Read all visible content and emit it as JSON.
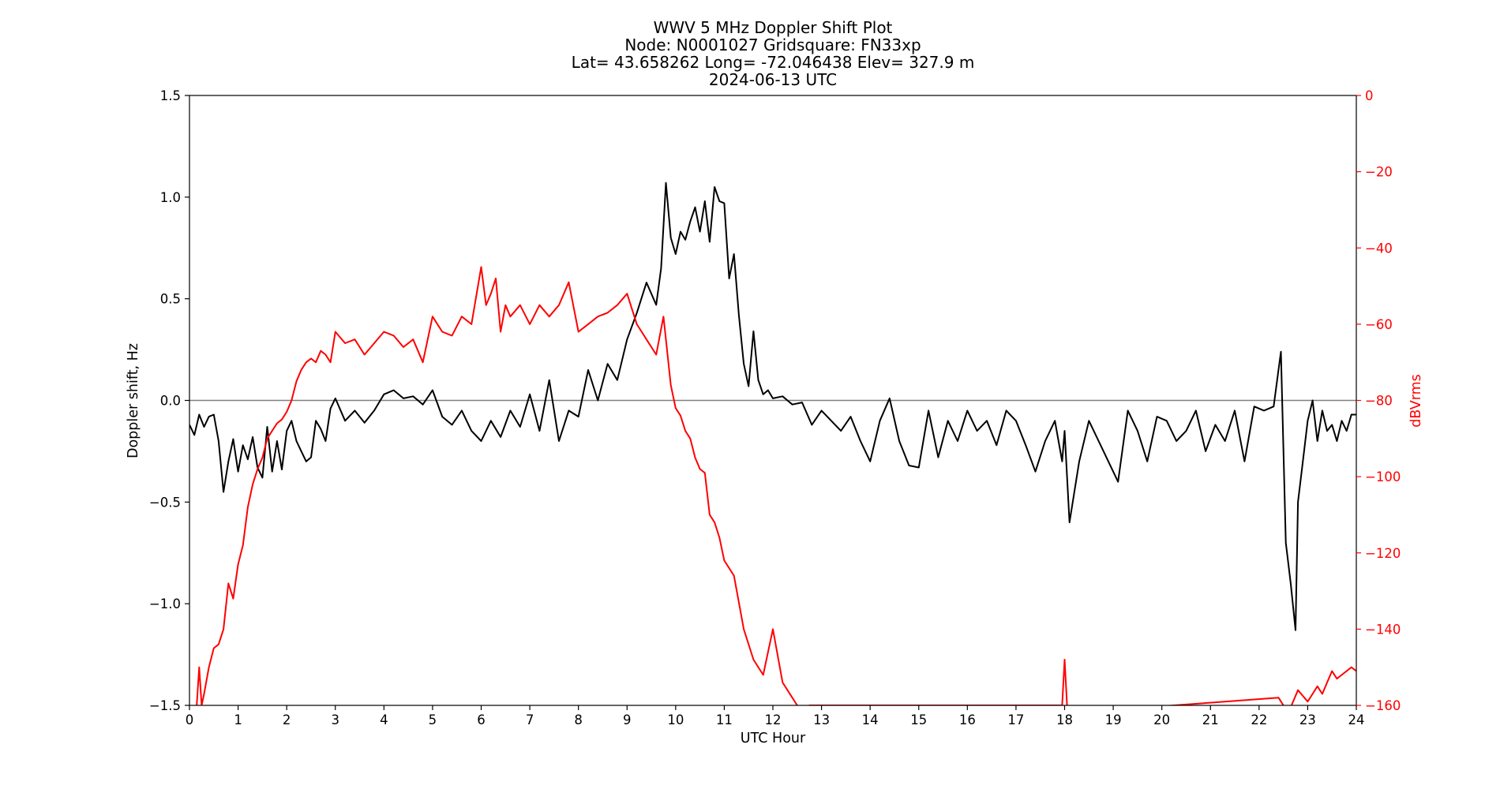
{
  "colors": {
    "doppler": "#000000",
    "power": "#ff0000",
    "zero_line": "#808080",
    "background": "#ffffff"
  },
  "chart_data": {
    "type": "line",
    "title_lines": [
      "WWV 5 MHz Doppler Shift Plot",
      "Node:  N0001027     Gridsquare:  FN33xp",
      "Lat=   43.658262    Long= -72.046438    Elev= 327.9 m",
      "2024-06-13  UTC"
    ],
    "xlabel": "UTC Hour",
    "ylabel": "Doppler shift, Hz",
    "y2label": "dBVrms",
    "xlim": [
      0,
      24
    ],
    "ylim": [
      -1.5,
      1.5
    ],
    "y2lim": [
      -160,
      0
    ],
    "x_ticks": [
      0,
      1,
      2,
      3,
      4,
      5,
      6,
      7,
      8,
      9,
      10,
      11,
      12,
      13,
      14,
      15,
      16,
      17,
      18,
      19,
      20,
      21,
      22,
      23,
      24
    ],
    "y_ticks": [
      "-1.5",
      "-1.0",
      "-0.5",
      "0.0",
      "0.5",
      "1.0",
      "1.5"
    ],
    "y2_ticks": [
      "-160",
      "-140",
      "-120",
      "-100",
      "-80",
      "-60",
      "-40",
      "-20",
      "0"
    ],
    "grid": false,
    "reference_line_y": 0,
    "series": [
      {
        "name": "",
        "axis": "left",
        "color": "#000000",
        "x": [
          0,
          0.1,
          0.2,
          0.3,
          0.4,
          0.5,
          0.6,
          0.7,
          0.8,
          0.9,
          1.0,
          1.1,
          1.2,
          1.3,
          1.4,
          1.5,
          1.6,
          1.7,
          1.8,
          1.9,
          2.0,
          2.1,
          2.2,
          2.3,
          2.4,
          2.5,
          2.6,
          2.7,
          2.8,
          2.9,
          3.0,
          3.2,
          3.4,
          3.6,
          3.8,
          4.0,
          4.2,
          4.4,
          4.6,
          4.8,
          5.0,
          5.2,
          5.4,
          5.6,
          5.8,
          6.0,
          6.2,
          6.4,
          6.6,
          6.8,
          7.0,
          7.2,
          7.4,
          7.6,
          7.8,
          8.0,
          8.2,
          8.4,
          8.6,
          8.8,
          9.0,
          9.2,
          9.4,
          9.6,
          9.7,
          9.8,
          9.9,
          10.0,
          10.1,
          10.2,
          10.3,
          10.4,
          10.5,
          10.6,
          10.7,
          10.8,
          10.9,
          11.0,
          11.1,
          11.2,
          11.3,
          11.4,
          11.5,
          11.6,
          11.7,
          11.8,
          11.9,
          12.0,
          12.2,
          12.4,
          12.6,
          12.8,
          13.0,
          13.2,
          13.4,
          13.6,
          13.8,
          14.0,
          14.2,
          14.4,
          14.6,
          14.8,
          15.0,
          15.2,
          15.4,
          15.6,
          15.8,
          16.0,
          16.2,
          16.4,
          16.6,
          16.8,
          17.0,
          17.2,
          17.4,
          17.6,
          17.8,
          17.95,
          18.0,
          18.1,
          18.3,
          18.5,
          18.7,
          18.9,
          19.1,
          19.3,
          19.5,
          19.7,
          19.9,
          20.1,
          20.3,
          20.5,
          20.7,
          20.9,
          21.1,
          21.3,
          21.5,
          21.7,
          21.9,
          22.1,
          22.3,
          22.45,
          22.55,
          22.65,
          22.75,
          22.8,
          22.9,
          23.0,
          23.1,
          23.2,
          23.3,
          23.4,
          23.5,
          23.6,
          23.7,
          23.8,
          23.9,
          24.0
        ],
        "values": [
          -0.12,
          -0.17,
          -0.07,
          -0.13,
          -0.08,
          -0.07,
          -0.2,
          -0.45,
          -0.3,
          -0.19,
          -0.35,
          -0.22,
          -0.29,
          -0.18,
          -0.33,
          -0.38,
          -0.13,
          -0.35,
          -0.2,
          -0.34,
          -0.15,
          -0.1,
          -0.2,
          -0.25,
          -0.3,
          -0.28,
          -0.1,
          -0.14,
          -0.2,
          -0.04,
          0.01,
          -0.1,
          -0.05,
          -0.11,
          -0.05,
          0.03,
          0.05,
          0.01,
          0.02,
          -0.02,
          0.05,
          -0.08,
          -0.12,
          -0.05,
          -0.15,
          -0.2,
          -0.1,
          -0.18,
          -0.05,
          -0.13,
          0.03,
          -0.15,
          0.1,
          -0.2,
          -0.05,
          -0.08,
          0.15,
          0.0,
          0.18,
          0.1,
          0.3,
          0.43,
          0.58,
          0.47,
          0.65,
          1.07,
          0.8,
          0.72,
          0.83,
          0.79,
          0.88,
          0.95,
          0.83,
          0.98,
          0.78,
          1.05,
          0.98,
          0.97,
          0.6,
          0.72,
          0.42,
          0.18,
          0.07,
          0.34,
          0.1,
          0.03,
          0.05,
          0.01,
          0.02,
          -0.02,
          -0.01,
          -0.12,
          -0.05,
          -0.1,
          -0.15,
          -0.08,
          -0.2,
          -0.3,
          -0.1,
          0.01,
          -0.2,
          -0.32,
          -0.33,
          -0.05,
          -0.28,
          -0.1,
          -0.2,
          -0.05,
          -0.15,
          -0.1,
          -0.22,
          -0.05,
          -0.1,
          -0.22,
          -0.35,
          -0.2,
          -0.1,
          -0.3,
          -0.15,
          -0.6,
          -0.3,
          -0.1,
          -0.2,
          -0.3,
          -0.4,
          -0.05,
          -0.15,
          -0.3,
          -0.08,
          -0.1,
          -0.2,
          -0.15,
          -0.05,
          -0.25,
          -0.12,
          -0.2,
          -0.05,
          -0.3,
          -0.03,
          -0.05,
          -0.03,
          0.24,
          -0.7,
          -0.9,
          -1.13,
          -0.5,
          -0.3,
          -0.1,
          0.0,
          -0.2,
          -0.05,
          -0.15,
          -0.12,
          -0.2,
          -0.1,
          -0.15,
          -0.07,
          -0.07
        ]
      },
      {
        "name": "",
        "axis": "right",
        "color": "#ff0000",
        "x": [
          0.15,
          0.2,
          0.25,
          0.3,
          0.4,
          0.5,
          0.6,
          0.7,
          0.8,
          0.9,
          1.0,
          1.1,
          1.2,
          1.3,
          1.4,
          1.5,
          1.6,
          1.7,
          1.8,
          1.9,
          2.0,
          2.1,
          2.2,
          2.3,
          2.4,
          2.5,
          2.6,
          2.7,
          2.8,
          2.9,
          3.0,
          3.2,
          3.4,
          3.6,
          3.8,
          4.0,
          4.2,
          4.4,
          4.6,
          4.8,
          5.0,
          5.2,
          5.4,
          5.6,
          5.8,
          6.0,
          6.1,
          6.2,
          6.3,
          6.4,
          6.5,
          6.6,
          6.8,
          7.0,
          7.2,
          7.4,
          7.6,
          7.8,
          8.0,
          8.2,
          8.4,
          8.6,
          8.8,
          9.0,
          9.2,
          9.4,
          9.6,
          9.75,
          9.9,
          10.0,
          10.1,
          10.2,
          10.3,
          10.4,
          10.5,
          10.6,
          10.7,
          10.8,
          10.9,
          11.0,
          11.2,
          11.4,
          11.6,
          11.8,
          12.0,
          12.2,
          12.4,
          12.6,
          12.75,
          17.95,
          18.0,
          18.05,
          18.1,
          22.4,
          22.6,
          22.8,
          23.0,
          23.1,
          23.2,
          23.3,
          23.4,
          23.5,
          23.6,
          23.7,
          23.8,
          23.9,
          24.0
        ],
        "values": [
          -160,
          -150,
          -160,
          -157,
          -150,
          -145,
          -144,
          -140,
          -128,
          -132,
          -123,
          -118,
          -108,
          -102,
          -98,
          -95,
          -90,
          -88,
          -86,
          -85,
          -83,
          -80,
          -75,
          -72,
          -70,
          -69,
          -70,
          -67,
          -68,
          -70,
          -62,
          -65,
          -64,
          -68,
          -65,
          -62,
          -63,
          -66,
          -64,
          -70,
          -58,
          -62,
          -63,
          -58,
          -60,
          -45,
          -55,
          -52,
          -48,
          -62,
          -55,
          -58,
          -55,
          -60,
          -55,
          -58,
          -55,
          -49,
          -62,
          -60,
          -58,
          -57,
          -55,
          -52,
          -60,
          -64,
          -68,
          -58,
          -76,
          -82,
          -84,
          -88,
          -90,
          -95,
          -98,
          -99,
          -110,
          -112,
          -116,
          -122,
          -126,
          -140,
          -148,
          -152,
          -140,
          -154,
          -158,
          -162,
          -160,
          -160,
          -148,
          -160,
          -162,
          -158,
          -162,
          -156,
          -159,
          -157,
          -155,
          -157,
          -154,
          -151,
          -153,
          -152,
          -151,
          -150,
          -151
        ]
      }
    ]
  }
}
